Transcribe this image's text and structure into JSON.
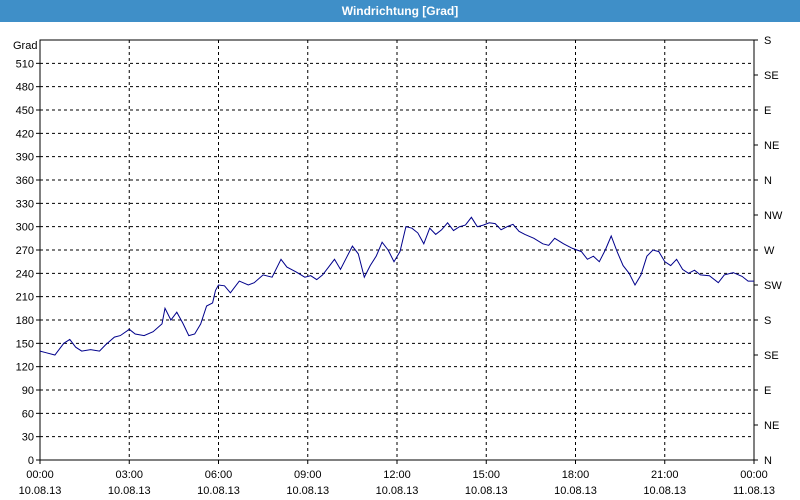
{
  "window": {
    "title": "Windrichtung [Grad]"
  },
  "chart_data": {
    "type": "line",
    "title": "Windrichtung [Grad]",
    "ylabel": "Grad",
    "ylim": [
      0,
      540
    ],
    "y_ticks": [
      0,
      30,
      60,
      90,
      120,
      150,
      180,
      210,
      240,
      270,
      300,
      330,
      360,
      390,
      420,
      450,
      480,
      510
    ],
    "y_tick_labels": [
      "0",
      "30",
      "60",
      "90",
      "120",
      "150",
      "180",
      "210",
      "240",
      "270",
      "300",
      "330",
      "360",
      "390",
      "420",
      "450",
      "480",
      "510"
    ],
    "right_axis_labels": [
      {
        "value": 0,
        "label": "N"
      },
      {
        "value": 45,
        "label": "NE"
      },
      {
        "value": 90,
        "label": "E"
      },
      {
        "value": 135,
        "label": "SE"
      },
      {
        "value": 180,
        "label": "S"
      },
      {
        "value": 225,
        "label": "SW"
      },
      {
        "value": 270,
        "label": "W"
      },
      {
        "value": 315,
        "label": "NW"
      },
      {
        "value": 360,
        "label": "N"
      },
      {
        "value": 405,
        "label": "NE"
      },
      {
        "value": 450,
        "label": "E"
      },
      {
        "value": 495,
        "label": "SE"
      },
      {
        "value": 540,
        "label": "S"
      }
    ],
    "xlim": [
      "10.08.13 00:00",
      "11.08.13 00:00"
    ],
    "x_ticks": [
      {
        "time": "00:00",
        "date": "10.08.13",
        "hour": 0
      },
      {
        "time": "03:00",
        "date": "10.08.13",
        "hour": 3
      },
      {
        "time": "06:00",
        "date": "10.08.13",
        "hour": 6
      },
      {
        "time": "09:00",
        "date": "10.08.13",
        "hour": 9
      },
      {
        "time": "12:00",
        "date": "10.08.13",
        "hour": 12
      },
      {
        "time": "15:00",
        "date": "10.08.13",
        "hour": 15
      },
      {
        "time": "18:00",
        "date": "10.08.13",
        "hour": 18
      },
      {
        "time": "21:00",
        "date": "10.08.13",
        "hour": 21
      },
      {
        "time": "00:00",
        "date": "11.08.13",
        "hour": 24
      }
    ],
    "grid": true,
    "line_color": "#00008b",
    "series": [
      {
        "x": [
          0,
          0.2,
          0.5,
          0.8,
          1.0,
          1.2,
          1.4,
          1.7,
          2.0,
          2.2,
          2.5,
          2.7,
          3.0,
          3.2,
          3.5,
          3.8,
          4.1,
          4.2,
          4.4,
          4.6,
          4.8,
          5.0,
          5.2,
          5.4,
          5.6,
          5.8,
          5.9,
          6.0,
          6.2,
          6.4,
          6.7,
          7.0,
          7.2,
          7.5,
          7.8,
          8.1,
          8.3,
          8.6,
          8.9,
          9.1,
          9.3,
          9.5,
          9.7,
          9.9,
          10.1,
          10.3,
          10.5,
          10.7,
          10.9,
          11.1,
          11.3,
          11.5,
          11.7,
          11.9,
          12.1,
          12.3,
          12.5,
          12.7,
          12.9,
          13.1,
          13.3,
          13.5,
          13.7,
          13.9,
          14.1,
          14.3,
          14.5,
          14.7,
          14.9,
          15.1,
          15.3,
          15.5,
          15.7,
          15.9,
          16.1,
          16.3,
          16.6,
          16.9,
          17.1,
          17.3,
          17.6,
          17.9,
          18.2,
          18.4,
          18.6,
          18.8,
          19.0,
          19.2,
          19.4,
          19.6,
          19.8,
          20.0,
          20.2,
          20.4,
          20.6,
          20.8,
          21.0,
          21.2,
          21.4,
          21.6,
          21.8,
          22.0,
          22.2,
          22.5,
          22.8,
          23.0,
          23.3,
          23.6,
          23.8,
          24.0
        ],
        "y": [
          140,
          138,
          135,
          150,
          155,
          145,
          140,
          142,
          140,
          148,
          158,
          160,
          168,
          162,
          160,
          165,
          175,
          195,
          180,
          190,
          176,
          160,
          162,
          175,
          198,
          202,
          218,
          225,
          224,
          215,
          230,
          225,
          228,
          238,
          235,
          258,
          248,
          242,
          235,
          237,
          232,
          238,
          248,
          258,
          245,
          260,
          275,
          265,
          235,
          250,
          262,
          280,
          270,
          255,
          268,
          300,
          298,
          292,
          278,
          298,
          290,
          296,
          305,
          295,
          300,
          302,
          312,
          300,
          302,
          305,
          304,
          296,
          300,
          303,
          294,
          290,
          285,
          278,
          276,
          285,
          278,
          272,
          268,
          258,
          262,
          255,
          270,
          288,
          268,
          250,
          240,
          225,
          238,
          262,
          270,
          268,
          255,
          250,
          258,
          245,
          240,
          244,
          238,
          237,
          228,
          238,
          241,
          236,
          230,
          230
        ]
      }
    ]
  }
}
